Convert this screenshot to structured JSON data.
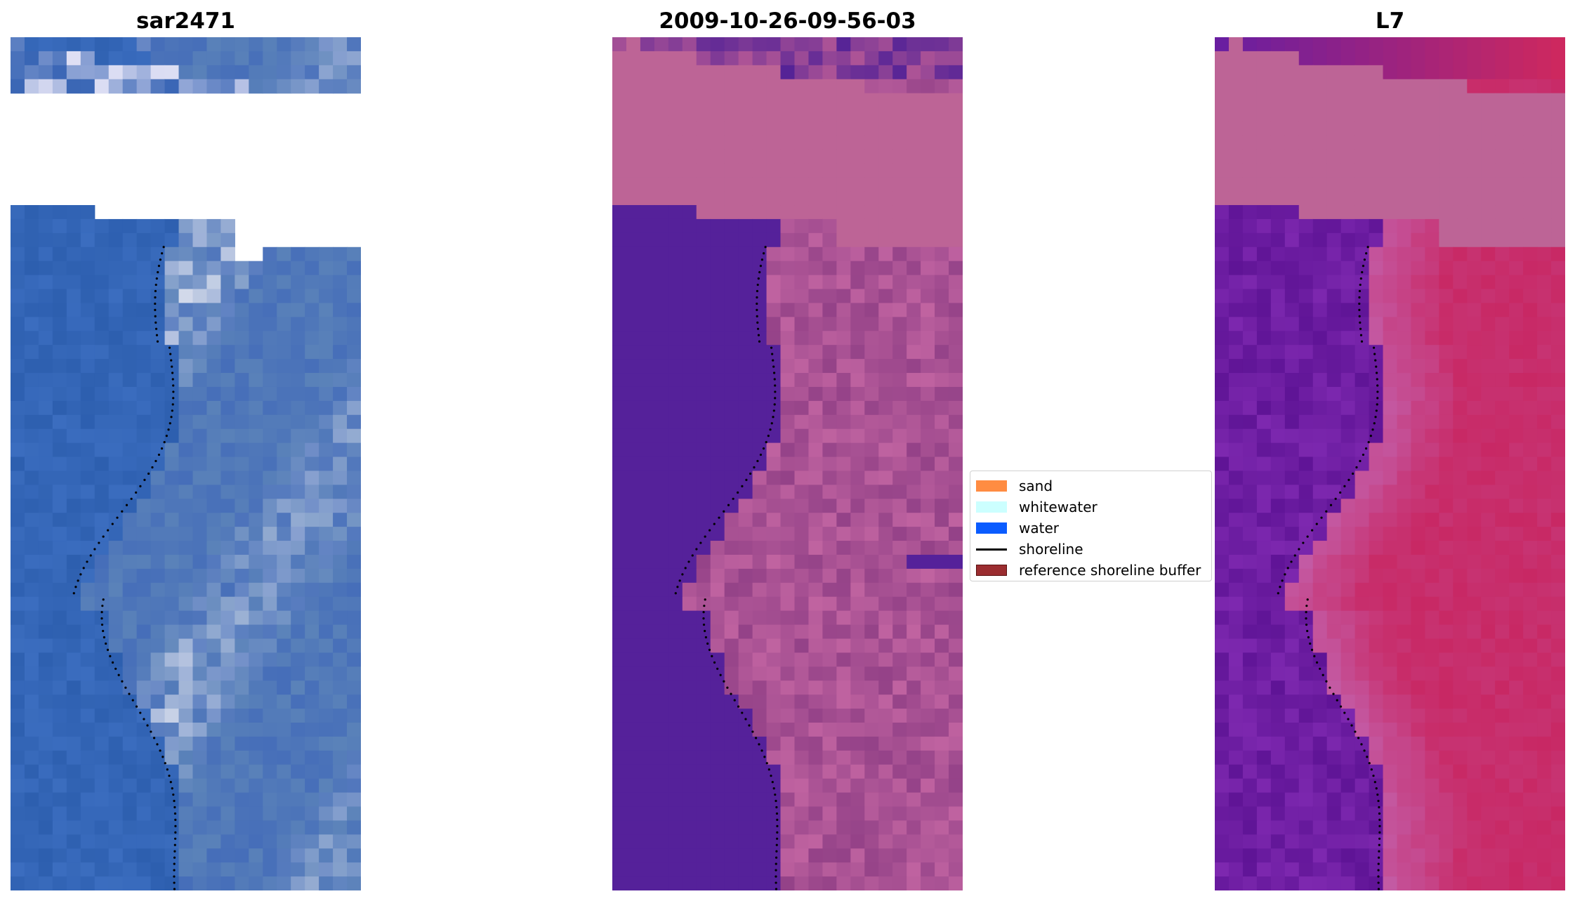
{
  "figure": {
    "panels": [
      {
        "id": "rgb",
        "title": "sar2471",
        "palette": "rgb"
      },
      {
        "id": "classified",
        "title": "2009-10-26-09-56-03",
        "palette": "classified"
      },
      {
        "id": "nir",
        "title": "L7",
        "palette": "nir"
      }
    ],
    "legend": {
      "placement": "center",
      "items": [
        {
          "label": "sand",
          "type": "patch",
          "color": "#ff8c42"
        },
        {
          "label": "whitewater",
          "type": "patch",
          "color": "#ccffff"
        },
        {
          "label": "water",
          "type": "patch",
          "color": "#0a5cff"
        },
        {
          "label": "shoreline",
          "type": "line",
          "color": "#000000"
        },
        {
          "label": "reference shoreline buffer",
          "type": "patch",
          "color": "#9b2d30"
        }
      ]
    },
    "colors": {
      "cloud_mask_classified": "#bd6496",
      "cloud_mask_nir": "#bd6496",
      "water_classified": "#55219a",
      "shoreline_dots": "#000000"
    }
  }
}
